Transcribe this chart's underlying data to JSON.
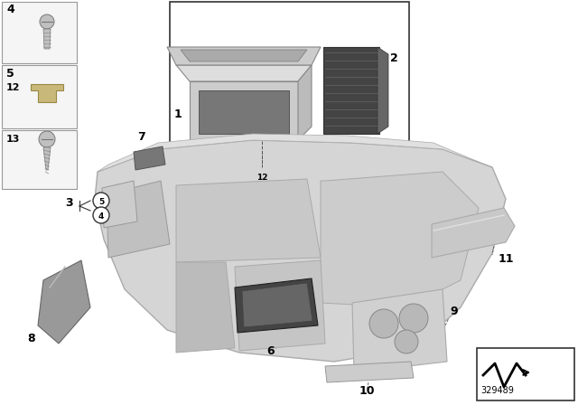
{
  "bg_color": "#ffffff",
  "part_number": "329489",
  "text_color": "#000000",
  "panel_light": "#d8d8d8",
  "panel_medium": "#b8b8b8",
  "panel_dark": "#888888",
  "part_dark": "#555555",
  "part_very_dark": "#333333"
}
